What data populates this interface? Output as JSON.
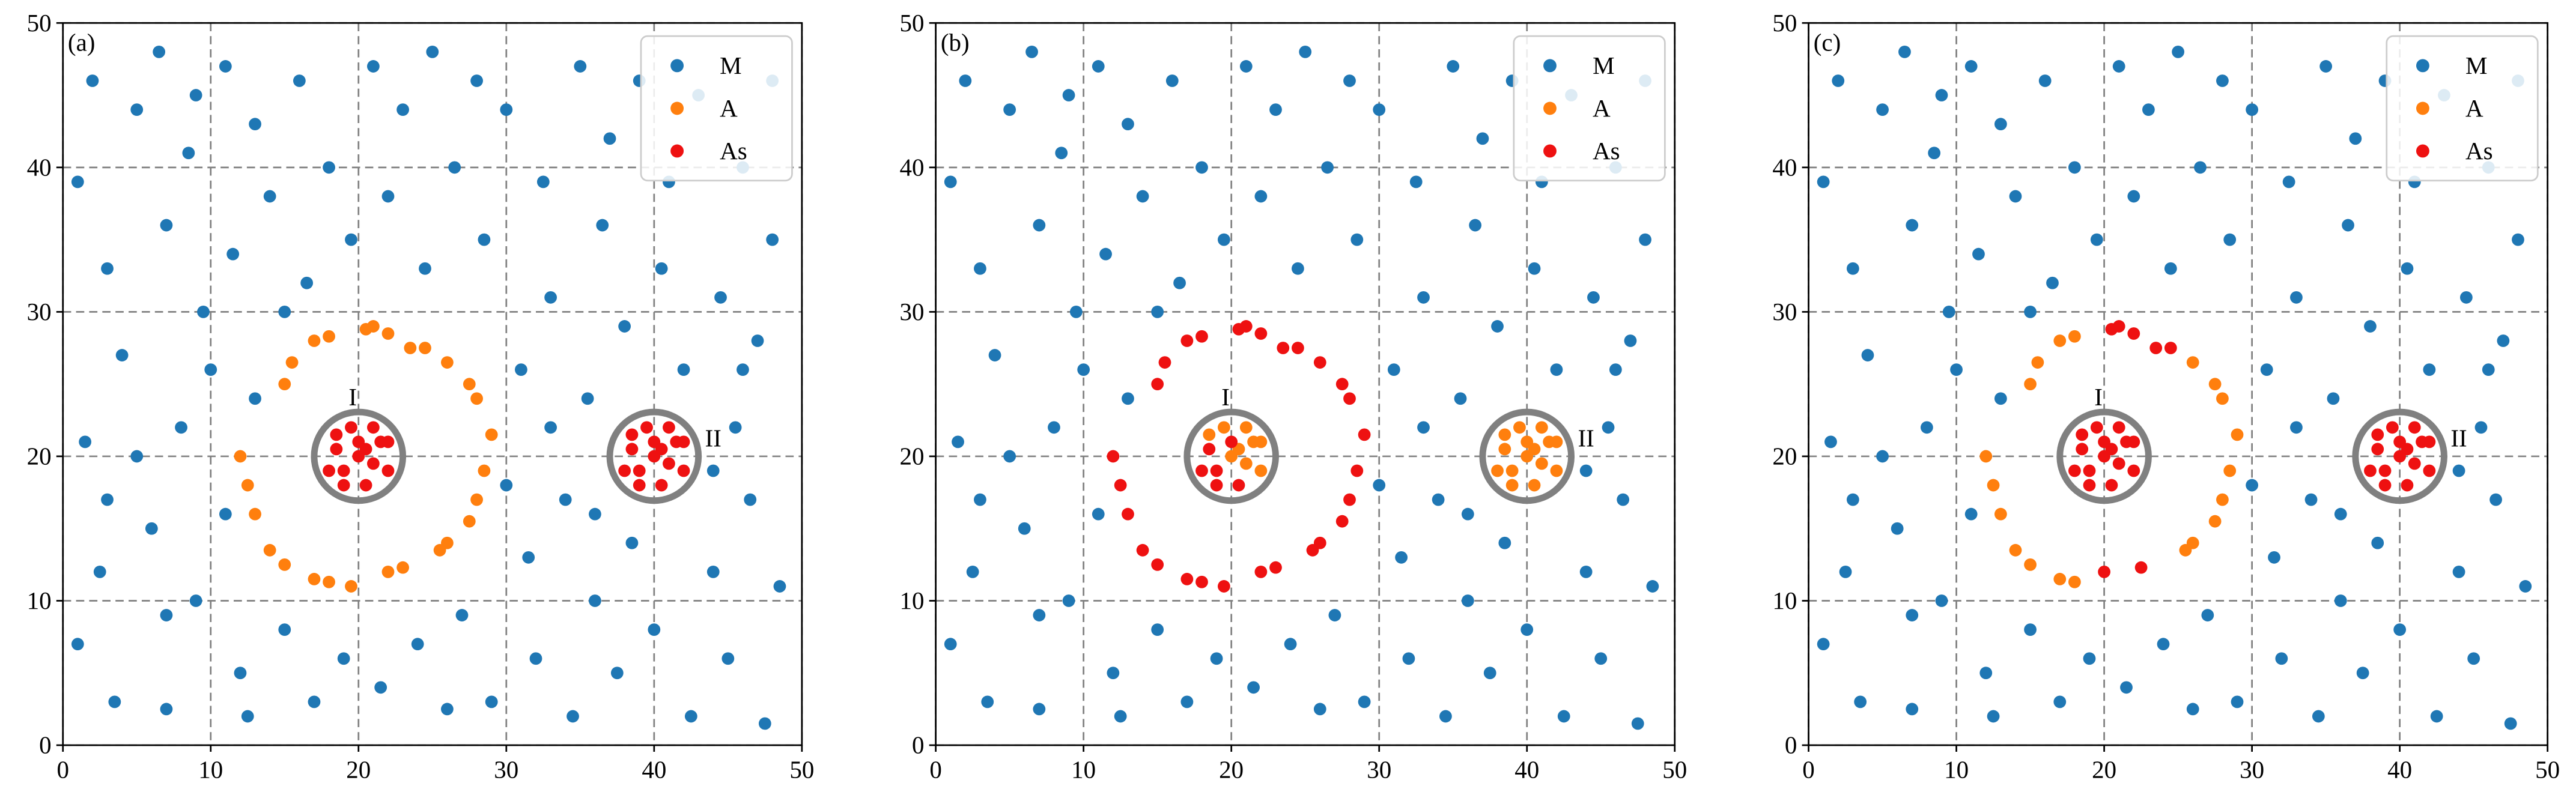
{
  "chart_data": [
    {
      "type": "scatter",
      "title": "(a)",
      "xlim": [
        0,
        50
      ],
      "ylim": [
        0,
        50
      ],
      "xticks": [
        0,
        10,
        20,
        30,
        40,
        50
      ],
      "yticks": [
        0,
        10,
        20,
        30,
        40,
        50
      ],
      "grid": true,
      "legend": "upper right",
      "region_color": "#808080",
      "regions": [
        {
          "label": "I",
          "x": 20,
          "y": 20,
          "r": 3
        },
        {
          "label": "II",
          "x": 40,
          "y": 20,
          "r": 3
        }
      ],
      "series": [
        {
          "name": "M",
          "color": "#1f77b4",
          "x": [
            1,
            1.5,
            1,
            2,
            3,
            2.5,
            4,
            5,
            3.5,
            6,
            7,
            6.5,
            8,
            7,
            9,
            9.5,
            8.5,
            11,
            12,
            11.5,
            13,
            12.5,
            14,
            15,
            16,
            16.5,
            17,
            18,
            19,
            19.5,
            21,
            21.5,
            22,
            23,
            24,
            24.5,
            25,
            26,
            26.5,
            27,
            28,
            28.5,
            29,
            30,
            31,
            31.5,
            32,
            32.5,
            33,
            34,
            34.5,
            35,
            35.5,
            36,
            36.5,
            37,
            37.5,
            38,
            38.5,
            39,
            40,
            40.5,
            41,
            42,
            42.5,
            43,
            44,
            44.5,
            45,
            45.5,
            46,
            46.5,
            47,
            47.5,
            48,
            48.5,
            48,
            5,
            10,
            11,
            3,
            7,
            13,
            30,
            33,
            46,
            44,
            36,
            9,
            15
          ],
          "y": [
            7,
            21,
            39,
            46,
            33,
            12,
            27,
            44,
            3,
            15,
            36,
            48,
            22,
            2.5,
            10,
            30,
            41,
            47,
            5,
            34,
            43,
            2,
            38,
            8,
            46,
            32,
            3,
            40,
            6,
            35,
            47,
            4,
            38,
            44,
            7,
            33,
            48,
            2.5,
            40,
            9,
            46,
            35,
            3,
            44,
            26,
            13,
            6,
            39,
            31,
            17,
            2,
            47,
            24,
            10,
            36,
            42,
            5,
            29,
            14,
            46,
            8,
            33,
            39,
            26,
            2,
            45,
            12,
            31,
            6,
            22,
            40,
            17,
            28,
            1.5,
            35,
            11,
            46,
            20,
            26,
            16,
            17,
            9,
            24,
            18,
            22,
            26,
            19,
            16,
            45,
            30
          ]
        },
        {
          "name": "A",
          "color": "#ff7f0e",
          "x": [
            12,
            12.5,
            13,
            14,
            15,
            17,
            18,
            19.5,
            22,
            23,
            25.5,
            26,
            27.5,
            28,
            28.5,
            29,
            28,
            27.5,
            26,
            24.5,
            23.5,
            22,
            21,
            20.5,
            18,
            17,
            15.5,
            15
          ],
          "y": [
            20,
            18,
            16,
            13.5,
            12.5,
            11.5,
            11.3,
            11,
            12,
            12.3,
            13.5,
            14,
            15.5,
            17,
            19,
            21.5,
            24,
            25,
            26.5,
            27.5,
            27.5,
            28.5,
            29,
            28.8,
            28.3,
            28,
            26.5,
            25
          ]
        },
        {
          "name": "As",
          "color": "#ee1111",
          "x": [
            19,
            20,
            21,
            18.5,
            21.5,
            19.5,
            20.5,
            22,
            18,
            19,
            21,
            20,
            22,
            18.5,
            20.5,
            39,
            40,
            41,
            38.5,
            41.5,
            39.5,
            40.5,
            42,
            38,
            39,
            41,
            40,
            42,
            38.5,
            40.5
          ],
          "y": [
            19,
            21,
            19.5,
            20.5,
            21,
            22,
            18,
            19,
            19,
            18,
            22,
            20,
            21,
            21.5,
            20.5,
            19,
            21,
            19.5,
            20.5,
            21,
            22,
            18,
            19,
            19,
            18,
            22,
            20,
            21,
            21.5,
            20.5
          ]
        }
      ]
    },
    {
      "type": "scatter",
      "title": "(b)",
      "xlim": [
        0,
        50
      ],
      "ylim": [
        0,
        50
      ],
      "xticks": [
        0,
        10,
        20,
        30,
        40,
        50
      ],
      "yticks": [
        0,
        10,
        20,
        30,
        40,
        50
      ],
      "grid": true,
      "legend": "upper right",
      "region_color": "#808080",
      "regions": [
        {
          "label": "I",
          "x": 20,
          "y": 20,
          "r": 3
        },
        {
          "label": "II",
          "x": 40,
          "y": 20,
          "r": 3
        }
      ],
      "series": [
        {
          "name": "M",
          "color": "#1f77b4",
          "x": [
            1,
            1.5,
            1,
            2,
            3,
            2.5,
            4,
            5,
            3.5,
            6,
            7,
            6.5,
            8,
            7,
            9,
            9.5,
            8.5,
            11,
            12,
            11.5,
            13,
            12.5,
            14,
            15,
            16,
            16.5,
            17,
            18,
            19,
            19.5,
            21,
            21.5,
            22,
            23,
            24,
            24.5,
            25,
            26,
            26.5,
            27,
            28,
            28.5,
            29,
            30,
            31,
            31.5,
            32,
            32.5,
            33,
            34,
            34.5,
            35,
            35.5,
            36,
            36.5,
            37,
            37.5,
            38,
            38.5,
            39,
            40,
            40.5,
            41,
            42,
            42.5,
            43,
            44,
            44.5,
            45,
            45.5,
            46,
            46.5,
            47,
            47.5,
            48,
            48.5,
            48,
            5,
            10,
            11,
            3,
            7,
            13,
            30,
            33,
            46,
            44,
            36,
            9,
            15
          ],
          "y": [
            7,
            21,
            39,
            46,
            33,
            12,
            27,
            44,
            3,
            15,
            36,
            48,
            22,
            2.5,
            10,
            30,
            41,
            47,
            5,
            34,
            43,
            2,
            38,
            8,
            46,
            32,
            3,
            40,
            6,
            35,
            47,
            4,
            38,
            44,
            7,
            33,
            48,
            2.5,
            40,
            9,
            46,
            35,
            3,
            44,
            26,
            13,
            6,
            39,
            31,
            17,
            2,
            47,
            24,
            10,
            36,
            42,
            5,
            29,
            14,
            46,
            8,
            33,
            39,
            26,
            2,
            45,
            12,
            31,
            6,
            22,
            40,
            17,
            28,
            1.5,
            35,
            11,
            46,
            20,
            26,
            16,
            17,
            9,
            24,
            18,
            22,
            26,
            19,
            16,
            45,
            30
          ]
        },
        {
          "name": "A",
          "color": "#ff7f0e",
          "x": [
            21,
            21.5,
            19.5,
            22,
            21,
            20,
            22,
            18.5,
            20.5,
            39,
            40,
            41,
            38.5,
            41.5,
            39.5,
            40.5,
            42,
            38,
            39,
            41,
            40,
            42,
            38.5,
            40.5
          ],
          "y": [
            19.5,
            21,
            22,
            19,
            22,
            20,
            21,
            21.5,
            20.5,
            19,
            21,
            19.5,
            20.5,
            21,
            22,
            18,
            19,
            19,
            18,
            22,
            20,
            21,
            21.5,
            20.5
          ]
        },
        {
          "name": "As",
          "color": "#ee1111",
          "x": [
            12,
            12.5,
            13,
            14,
            15,
            17,
            18,
            19.5,
            22,
            23,
            25.5,
            26,
            27.5,
            28,
            28.5,
            29,
            28,
            27.5,
            26,
            24.5,
            23.5,
            22,
            21,
            20.5,
            18,
            17,
            15.5,
            15,
            19,
            20,
            18.5,
            20.5,
            18,
            19
          ],
          "y": [
            20,
            18,
            16,
            13.5,
            12.5,
            11.5,
            11.3,
            11,
            12,
            12.3,
            13.5,
            14,
            15.5,
            17,
            19,
            21.5,
            24,
            25,
            26.5,
            27.5,
            27.5,
            28.5,
            29,
            28.8,
            28.3,
            28,
            26.5,
            25,
            19,
            21,
            20.5,
            18,
            19,
            18
          ]
        }
      ]
    },
    {
      "type": "scatter",
      "title": "(c)",
      "xlim": [
        0,
        50
      ],
      "ylim": [
        0,
        50
      ],
      "xticks": [
        0,
        10,
        20,
        30,
        40,
        50
      ],
      "yticks": [
        0,
        10,
        20,
        30,
        40,
        50
      ],
      "grid": true,
      "legend": "upper right",
      "region_color": "#808080",
      "regions": [
        {
          "label": "I",
          "x": 20,
          "y": 20,
          "r": 3
        },
        {
          "label": "II",
          "x": 40,
          "y": 20,
          "r": 3
        }
      ],
      "series": [
        {
          "name": "M",
          "color": "#1f77b4",
          "x": [
            1,
            1.5,
            1,
            2,
            3,
            2.5,
            4,
            5,
            3.5,
            6,
            7,
            6.5,
            8,
            7,
            9,
            9.5,
            8.5,
            11,
            12,
            11.5,
            13,
            12.5,
            14,
            15,
            16,
            16.5,
            17,
            18,
            19,
            19.5,
            21,
            21.5,
            22,
            23,
            24,
            24.5,
            25,
            26,
            26.5,
            27,
            28,
            28.5,
            29,
            30,
            31,
            31.5,
            32,
            32.5,
            33,
            34,
            34.5,
            35,
            35.5,
            36,
            36.5,
            37,
            37.5,
            38,
            38.5,
            39,
            40,
            40.5,
            41,
            42,
            42.5,
            43,
            44,
            44.5,
            45,
            45.5,
            46,
            46.5,
            47,
            47.5,
            48,
            48.5,
            48,
            5,
            10,
            11,
            3,
            7,
            13,
            30,
            33,
            46,
            44,
            36,
            9,
            15
          ],
          "y": [
            7,
            21,
            39,
            46,
            33,
            12,
            27,
            44,
            3,
            15,
            36,
            48,
            22,
            2.5,
            10,
            30,
            41,
            47,
            5,
            34,
            43,
            2,
            38,
            8,
            46,
            32,
            3,
            40,
            6,
            35,
            47,
            4,
            38,
            44,
            7,
            33,
            48,
            2.5,
            40,
            9,
            46,
            35,
            3,
            44,
            26,
            13,
            6,
            39,
            31,
            17,
            2,
            47,
            24,
            10,
            36,
            42,
            5,
            29,
            14,
            46,
            8,
            33,
            39,
            26,
            2,
            45,
            12,
            31,
            6,
            22,
            40,
            17,
            28,
            1.5,
            35,
            11,
            46,
            20,
            26,
            16,
            17,
            9,
            24,
            18,
            22,
            26,
            19,
            16,
            45,
            30
          ]
        },
        {
          "name": "A",
          "color": "#ff7f0e",
          "x": [
            12,
            12.5,
            13,
            14,
            15,
            17,
            18,
            25.5,
            26,
            27.5,
            28,
            28.5,
            29,
            28,
            27.5,
            26,
            18,
            17,
            15.5,
            15
          ],
          "y": [
            20,
            18,
            16,
            13.5,
            12.5,
            11.5,
            11.3,
            13.5,
            14,
            15.5,
            17,
            19,
            21.5,
            24,
            25,
            26.5,
            28.3,
            28,
            26.5,
            25
          ]
        },
        {
          "name": "As",
          "color": "#ee1111",
          "x": [
            20,
            22.5,
            24.5,
            23.5,
            22,
            21,
            20.5,
            19,
            20,
            21,
            18.5,
            21.5,
            19.5,
            20.5,
            22,
            18,
            19,
            21,
            20,
            22,
            18.5,
            20.5,
            39,
            40,
            41,
            38.5,
            41.5,
            39.5,
            40.5,
            42,
            38,
            39,
            41,
            40,
            42,
            38.5,
            40.5
          ],
          "y": [
            12,
            12.3,
            27.5,
            27.5,
            28.5,
            29,
            28.8,
            19,
            21,
            19.5,
            20.5,
            21,
            22,
            18,
            19,
            19,
            18,
            22,
            20,
            21,
            21.5,
            20.5,
            19,
            21,
            19.5,
            20.5,
            21,
            22,
            18,
            19,
            19,
            18,
            22,
            20,
            21,
            21.5,
            20.5
          ]
        }
      ]
    }
  ]
}
